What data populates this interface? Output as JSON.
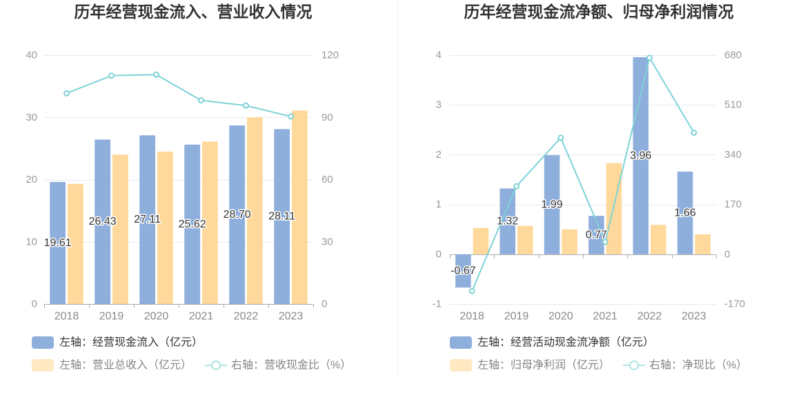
{
  "chart_data": [
    {
      "type": "bar",
      "title": "历年经营现金流入、营业收入情况",
      "categories": [
        "2018",
        "2019",
        "2020",
        "2021",
        "2022",
        "2023"
      ],
      "y_left": {
        "ylim": [
          0,
          40
        ],
        "ticks": [
          0,
          10,
          20,
          30,
          40
        ]
      },
      "y_right": {
        "ylim": [
          0,
          120
        ],
        "ticks": [
          0,
          30,
          60,
          90,
          120
        ]
      },
      "grid": true,
      "legend_position": "bottom-left",
      "series": [
        {
          "name": "左轴：经营现金流入（亿元）",
          "type": "bar",
          "axis": "left",
          "color": "#8eaedc",
          "values": [
            19.61,
            26.43,
            27.11,
            25.62,
            28.7,
            28.11
          ],
          "data_labels": [
            "19.61",
            "26.43",
            "27.11",
            "25.62",
            "28.70",
            "28.11"
          ]
        },
        {
          "name": "左轴：营业总收入（亿元）",
          "type": "bar",
          "axis": "left",
          "color": "#ffd99b",
          "values": [
            19.3,
            24.0,
            24.5,
            26.1,
            30.0,
            31.1
          ]
        },
        {
          "name": "右轴：营收现金比（%）",
          "type": "line",
          "axis": "right",
          "color": "#7dd3d6",
          "values": [
            101.6,
            110.1,
            110.6,
            98.2,
            95.7,
            90.4
          ]
        }
      ]
    },
    {
      "type": "bar",
      "title": "历年经营现金流净额、归母净利润情况",
      "categories": [
        "2018",
        "2019",
        "2020",
        "2021",
        "2022",
        "2023"
      ],
      "y_left": {
        "ylim": [
          -1,
          4
        ],
        "ticks": [
          -1,
          0,
          1,
          2,
          3,
          4
        ]
      },
      "y_right": {
        "ylim": [
          -170,
          680
        ],
        "ticks": [
          -170,
          0,
          170,
          340,
          510,
          680
        ]
      },
      "grid": true,
      "legend_position": "bottom-left",
      "series": [
        {
          "name": "左轴：经营活动现金流净额（亿元）",
          "type": "bar",
          "axis": "left",
          "color": "#8eaedc",
          "values": [
            -0.67,
            1.32,
            1.99,
            0.77,
            3.96,
            1.66
          ],
          "data_labels": [
            "-0.67",
            "1.32",
            "1.99",
            "0.77",
            "3.96",
            "1.66"
          ]
        },
        {
          "name": "左轴：归母净利润（亿元）",
          "type": "bar",
          "axis": "left",
          "color": "#ffd99b",
          "values": [
            0.53,
            0.57,
            0.5,
            1.83,
            0.59,
            0.4
          ]
        },
        {
          "name": "右轴：净现比（%）",
          "type": "line",
          "axis": "right",
          "color": "#7dd3d6",
          "values": [
            -126,
            232,
            398,
            42,
            671,
            415
          ]
        }
      ]
    }
  ]
}
